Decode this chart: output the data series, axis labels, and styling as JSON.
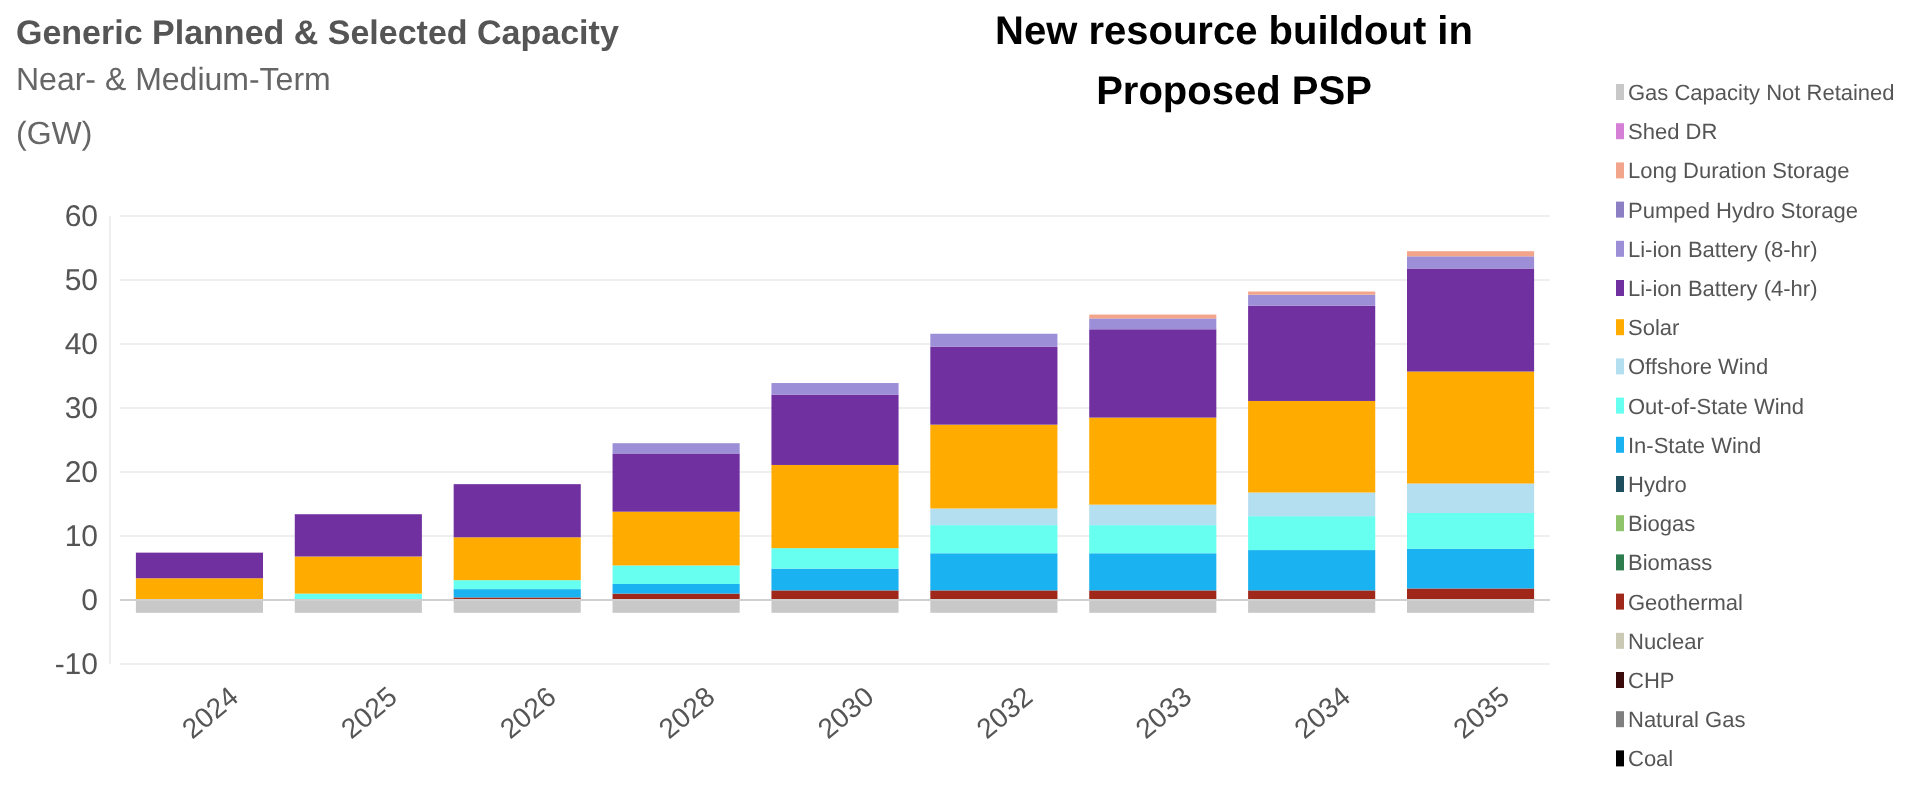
{
  "chart_data": {
    "type": "bar",
    "stacked": true,
    "title": "Generic Planned & Selected Capacity",
    "subtitle": "Near- & Medium-Term",
    "ylabel": "(GW)",
    "annotations": [
      "New resource buildout in Proposed PSP"
    ],
    "categories": [
      "2024",
      "2025",
      "2026",
      "2028",
      "2030",
      "2032",
      "2033",
      "2034",
      "2035"
    ],
    "ylim": [
      -10,
      60
    ],
    "yticks": [
      -10,
      0,
      10,
      20,
      30,
      40,
      50,
      60
    ],
    "grid": "y",
    "legend": "right",
    "series": [
      {
        "name": "Coal",
        "color": "#000000",
        "values": [
          null,
          null,
          null,
          null,
          null,
          null,
          null,
          null,
          null
        ]
      },
      {
        "name": "Natural Gas",
        "color": "#7f7f7f",
        "values": [
          null,
          null,
          null,
          null,
          null,
          null,
          null,
          null,
          null
        ]
      },
      {
        "name": "CHP",
        "color": "#3a0a0a",
        "values": [
          null,
          null,
          null,
          null,
          null,
          null,
          null,
          null,
          null
        ]
      },
      {
        "name": "Nuclear",
        "color": "#c9c9b4",
        "values": [
          null,
          null,
          null,
          null,
          null,
          null,
          null,
          null,
          null
        ]
      },
      {
        "name": "Geothermal",
        "color": "#a0281a",
        "values": [
          null,
          null,
          0.4,
          1.0,
          1.5,
          1.5,
          1.5,
          1.5,
          1.8
        ]
      },
      {
        "name": "Biomass",
        "color": "#2e7d4f",
        "values": [
          null,
          null,
          null,
          null,
          null,
          null,
          null,
          null,
          null
        ]
      },
      {
        "name": "Biogas",
        "color": "#8fc46a",
        "values": [
          null,
          null,
          null,
          null,
          null,
          null,
          null,
          null,
          null
        ]
      },
      {
        "name": "Hydro",
        "color": "#1f4e5f",
        "values": [
          null,
          null,
          null,
          null,
          null,
          null,
          null,
          null,
          null
        ]
      },
      {
        "name": "In-State Wind",
        "color": "#1ab2f0",
        "values": [
          null,
          null,
          1.3,
          1.5,
          3.4,
          5.8,
          5.8,
          6.3,
          6.2
        ]
      },
      {
        "name": "Out-of-State Wind",
        "color": "#66fff0",
        "values": [
          null,
          1.0,
          1.4,
          2.9,
          3.2,
          4.4,
          4.4,
          5.3,
          5.6
        ]
      },
      {
        "name": "Offshore Wind",
        "color": "#b4dff0",
        "values": [
          null,
          null,
          null,
          null,
          null,
          2.6,
          3.2,
          3.7,
          4.6
        ]
      },
      {
        "name": "Solar",
        "color": "#ffab00",
        "values": [
          3.4,
          5.8,
          6.7,
          8.4,
          13.0,
          13.1,
          13.6,
          14.3,
          17.5
        ]
      },
      {
        "name": "Li-ion Battery (4-hr)",
        "color": "#7030a0",
        "values": [
          4.0,
          6.6,
          8.3,
          9.1,
          11.0,
          12.2,
          13.8,
          14.9,
          16.1
        ]
      },
      {
        "name": "Li-ion Battery (8-hr)",
        "color": "#9c8fd8",
        "values": [
          null,
          null,
          null,
          1.6,
          1.8,
          2.0,
          1.7,
          1.7,
          1.9
        ]
      },
      {
        "name": "Pumped Hydro Storage",
        "color": "#8d7fc4",
        "values": [
          null,
          null,
          null,
          null,
          null,
          null,
          null,
          null,
          null
        ]
      },
      {
        "name": "Long Duration Storage",
        "color": "#f2a58a",
        "values": [
          null,
          null,
          null,
          null,
          null,
          null,
          0.6,
          0.5,
          0.8
        ]
      },
      {
        "name": "Shed DR",
        "color": "#d67fd6",
        "values": [
          null,
          null,
          null,
          null,
          null,
          null,
          null,
          null,
          null
        ]
      },
      {
        "name": "Gas Capacity Not Retained",
        "color": "#c8c8c8",
        "values": [
          -2,
          -2,
          -2,
          -2,
          -2,
          -2,
          -2,
          -2,
          -2
        ]
      }
    ]
  }
}
